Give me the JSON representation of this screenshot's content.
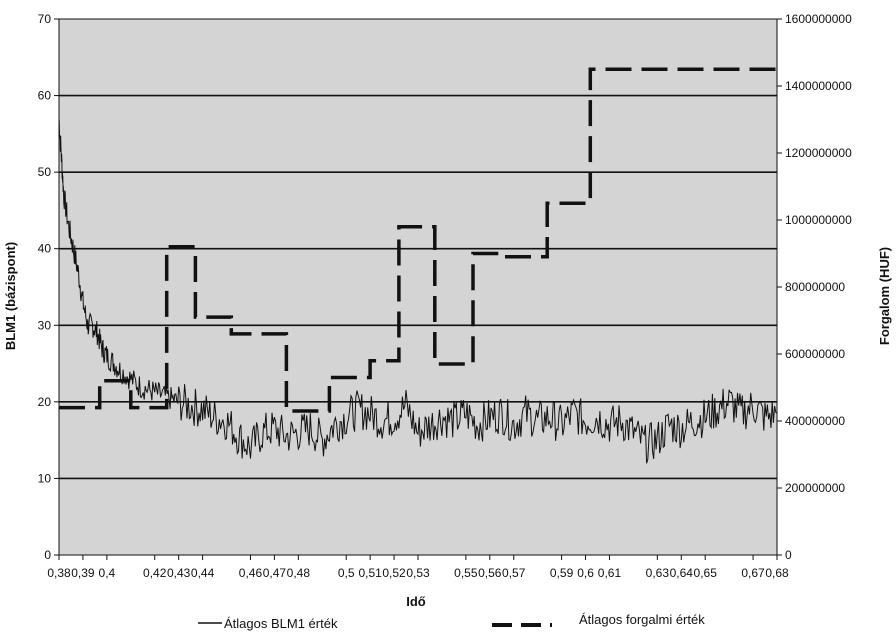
{
  "chart_data": {
    "type": "line",
    "xlabel": "Idő",
    "ylabel_left": "BLM1 (bázispont)",
    "ylabel_right": "Forgalom (HUF)",
    "y_left_range": [
      0,
      70
    ],
    "y_left_ticks": [
      "0",
      "10",
      "20",
      "30",
      "40",
      "50",
      "60",
      "70"
    ],
    "y_right_range": [
      0,
      1600000000
    ],
    "y_right_ticks": [
      "0",
      "200000000",
      "400000000",
      "600000000",
      "800000000",
      "1000000000",
      "1200000000",
      "1400000000",
      "1600000000"
    ],
    "x_range": [
      0.38,
      0.68
    ],
    "x_tick_labels": [
      {
        "label": "0,38",
        "x": 0.38
      },
      {
        "label": "0,39",
        "x": 0.39
      },
      {
        "label": "0,4",
        "x": 0.4
      },
      {
        "label": "0,42",
        "x": 0.42
      },
      {
        "label": "0,43",
        "x": 0.43
      },
      {
        "label": "0,44",
        "x": 0.44
      },
      {
        "label": "0,46",
        "x": 0.46
      },
      {
        "label": "0,47",
        "x": 0.47
      },
      {
        "label": "0,48",
        "x": 0.48
      },
      {
        "label": "0,5",
        "x": 0.5
      },
      {
        "label": "0,51",
        "x": 0.51
      },
      {
        "label": "0,52",
        "x": 0.52
      },
      {
        "label": "0,53",
        "x": 0.53
      },
      {
        "label": "0,55",
        "x": 0.55
      },
      {
        "label": "0,56",
        "x": 0.56
      },
      {
        "label": "0,57",
        "x": 0.57
      },
      {
        "label": "0,59",
        "x": 0.59
      },
      {
        "label": "0,6",
        "x": 0.6
      },
      {
        "label": "0,61",
        "x": 0.61
      },
      {
        "label": "0,63",
        "x": 0.63
      },
      {
        "label": "0,64",
        "x": 0.64
      },
      {
        "label": "0,65",
        "x": 0.65
      },
      {
        "label": "0,67",
        "x": 0.67
      },
      {
        "label": "0,68",
        "x": 0.68
      }
    ],
    "grid": true,
    "legend_position": "bottom",
    "series": [
      {
        "name": "Átlagos BLM1 érték",
        "axis": "left",
        "style": "solid",
        "x": [
          0.38,
          0.381,
          0.382,
          0.384,
          0.386,
          0.388,
          0.39,
          0.392,
          0.394,
          0.396,
          0.398,
          0.4,
          0.403,
          0.406,
          0.41,
          0.414,
          0.418,
          0.422,
          0.426,
          0.43,
          0.435,
          0.44,
          0.445,
          0.45,
          0.455,
          0.46,
          0.465,
          0.47,
          0.475,
          0.48,
          0.485,
          0.49,
          0.495,
          0.5,
          0.505,
          0.51,
          0.515,
          0.52,
          0.525,
          0.53,
          0.535,
          0.54,
          0.545,
          0.55,
          0.555,
          0.56,
          0.565,
          0.57,
          0.575,
          0.58,
          0.585,
          0.59,
          0.595,
          0.6,
          0.605,
          0.61,
          0.615,
          0.62,
          0.625,
          0.63,
          0.635,
          0.64,
          0.645,
          0.65,
          0.655,
          0.66,
          0.665,
          0.67,
          0.675,
          0.68
        ],
        "y": [
          57,
          52,
          47,
          43,
          40,
          37,
          33,
          30,
          30,
          29,
          27,
          26,
          25,
          24,
          23,
          22,
          21.5,
          21,
          20.5,
          20,
          19.5,
          19,
          18,
          17.5,
          15.5,
          14,
          16,
          16.5,
          15.5,
          16,
          16.5,
          15,
          17,
          18,
          19,
          18.5,
          17.5,
          18,
          19.5,
          16,
          17,
          18,
          17.5,
          18.5,
          17,
          18,
          18.5,
          17,
          18.5,
          17.5,
          18,
          17,
          18.5,
          17.5,
          18,
          17,
          17.5,
          16,
          14.5,
          15,
          17,
          16.5,
          17.5,
          18,
          19,
          20,
          18.5,
          19.5,
          18,
          18.5
        ]
      },
      {
        "name": "Átlagos forgalmi érték",
        "axis": "right",
        "style": "dashed-step",
        "x": [
          0.38,
          0.397,
          0.397,
          0.41,
          0.41,
          0.425,
          0.425,
          0.437,
          0.437,
          0.452,
          0.452,
          0.475,
          0.475,
          0.493,
          0.493,
          0.51,
          0.51,
          0.522,
          0.522,
          0.537,
          0.537,
          0.553,
          0.553,
          0.565,
          0.565,
          0.584,
          0.584,
          0.602,
          0.602,
          0.618,
          0.618,
          0.635,
          0.635,
          0.653,
          0.653,
          0.668,
          0.668,
          0.68
        ],
        "y": [
          440000000,
          440000000,
          520000000,
          520000000,
          440000000,
          440000000,
          920000000,
          920000000,
          710000000,
          710000000,
          660000000,
          660000000,
          430000000,
          430000000,
          530000000,
          530000000,
          580000000,
          580000000,
          980000000,
          980000000,
          570000000,
          570000000,
          900000000,
          900000000,
          890000000,
          890000000,
          1050000000,
          1050000000,
          1450000000,
          1450000000,
          1450000000,
          1450000000,
          1450000000,
          1450000000,
          1450000000,
          1450000000,
          1450000000,
          1450000000
        ]
      }
    ]
  }
}
